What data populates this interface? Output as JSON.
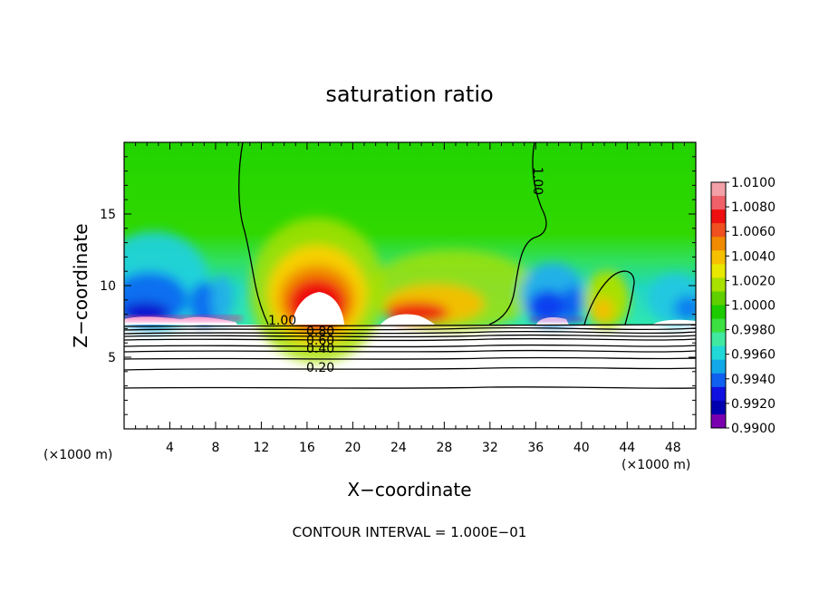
{
  "chart_data": {
    "type": "heatmap",
    "title": "saturation ratio",
    "xlabel": "X−coordinate",
    "ylabel": "Z−coordinate",
    "x_unit": "(×1000 m)",
    "x_unit_right": "(×1000 m)",
    "xlim": [
      0,
      50
    ],
    "ylim": [
      0,
      20
    ],
    "x_ticks": [
      4,
      8,
      12,
      16,
      20,
      24,
      28,
      32,
      36,
      40,
      44,
      48
    ],
    "x_tick_labels": [
      "4",
      "8",
      "12",
      "16",
      "20",
      "24",
      "28",
      "32",
      "36",
      "40",
      "44",
      "48"
    ],
    "y_ticks": [
      5,
      10,
      15
    ],
    "y_tick_labels": [
      "5",
      "10",
      "15"
    ],
    "colorbar": {
      "levels": [
        "1.0100",
        "1.0080",
        "1.0060",
        "1.0040",
        "1.0020",
        "1.0000",
        "0.9980",
        "0.9960",
        "0.9940",
        "0.9920",
        "0.9900"
      ],
      "colors": [
        "#f3a0a6",
        "#f06068",
        "#ee1010",
        "#f04f20",
        "#f08a00",
        "#f6c000",
        "#e8e800",
        "#a8e000",
        "#60d000",
        "#1ccc00",
        "#3ce040",
        "#40e8a0",
        "#20d8d8",
        "#10a8e8",
        "#1060f0",
        "#1010e0",
        "#0000b0",
        "#7a00b0"
      ]
    },
    "contour_labels": [
      "1.00",
      "1.00",
      "0.80",
      "0.60",
      "0.40",
      "0.20"
    ],
    "contour_interval": "CONTOUR INTERVAL = 1.000E−01"
  }
}
